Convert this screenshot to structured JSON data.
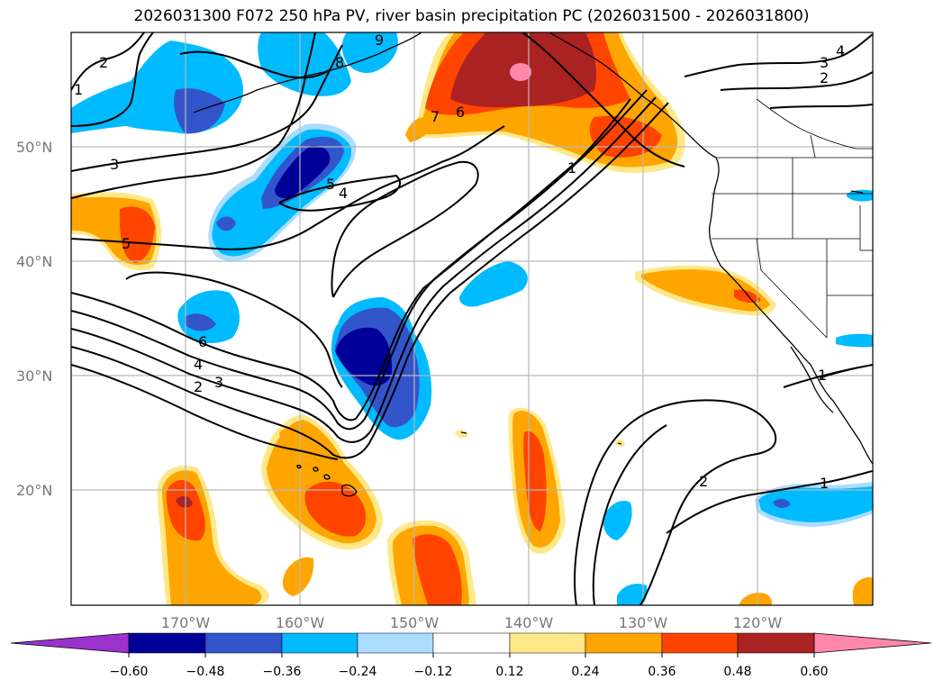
{
  "title": "2026031300 F072 250 hPa PV, river basin precipitation PC (2026031500 - 2026031800)",
  "map": {
    "latitude_labels": [
      "50°N",
      "40°N",
      "30°N",
      "20°N"
    ],
    "longitude_labels": [
      "170°W",
      "160°W",
      "150°W",
      "140°W",
      "130°W",
      "120°W"
    ],
    "pv_contour_labels": [
      "2",
      "1",
      "3",
      "5",
      "4",
      "5",
      "6",
      "4",
      "2",
      "3",
      "8",
      "7",
      "6",
      "1",
      "4",
      "3",
      "2",
      "1",
      "2",
      "1",
      "9"
    ]
  },
  "colorbar": {
    "tick_labels": [
      "−0.60",
      "−0.48",
      "−0.36",
      "−0.24",
      "−0.12",
      "0.12",
      "0.24",
      "0.36",
      "0.48",
      "0.60"
    ],
    "colors": {
      "lt_-0.60": "#9933cc",
      "-0.60_-0.48": "#000099",
      "-0.48_-0.36": "#3355cc",
      "-0.36_-0.24": "#00bbff",
      "-0.24_-0.12": "#aaddff",
      "-0.12_0.12": "#ffffff",
      "0.12_0.24": "#ffe888",
      "0.24_0.36": "#ffa500",
      "0.36_0.48": "#ff4400",
      "0.48_0.60": "#aa2222",
      "gt_0.60": "#ff88aa"
    }
  }
}
